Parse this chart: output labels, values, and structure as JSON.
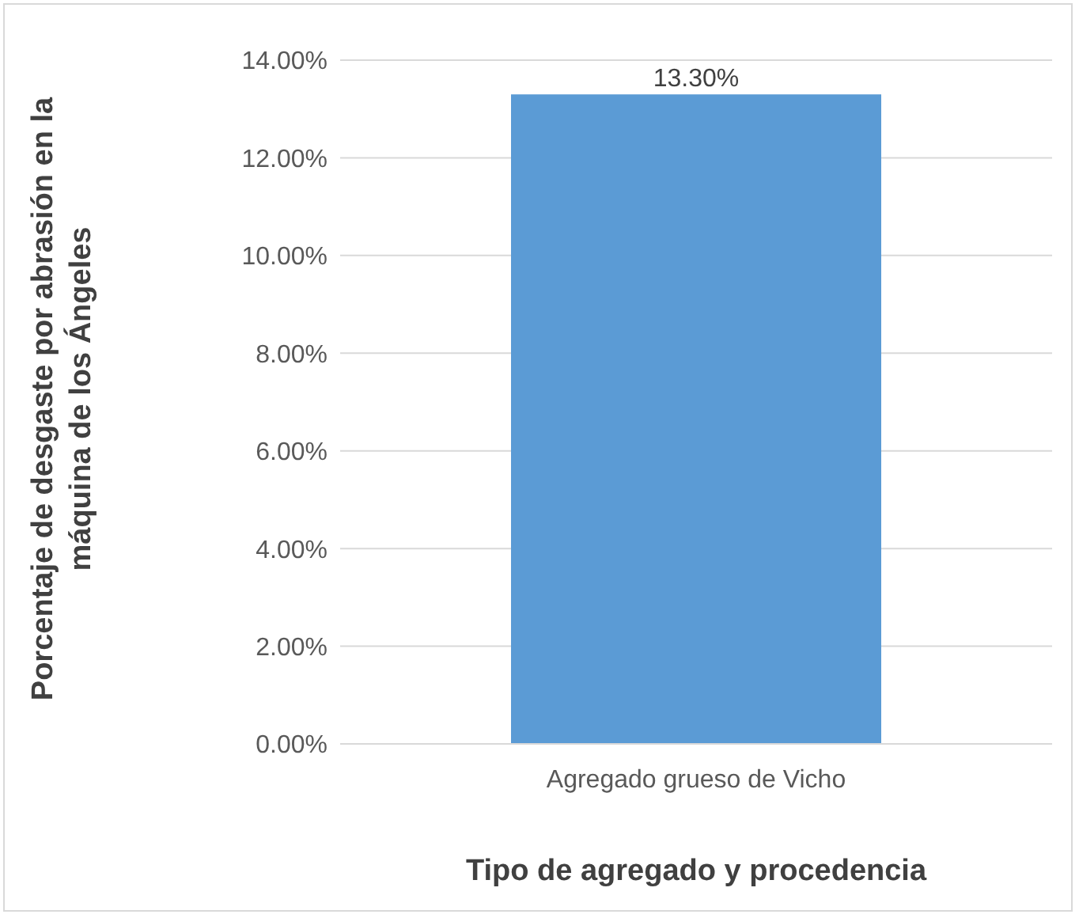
{
  "chart_data": {
    "type": "bar",
    "xlabel": "Tipo de agregado y procedencia",
    "ylabel": "Porcentaje de desgaste por abrasión en la máquina de los Ángeles",
    "categories": [
      "Agregado grueso de Vicho"
    ],
    "values": [
      13.3
    ],
    "value_labels": [
      "13.30%"
    ],
    "color": "#5b9bd5",
    "ylim": [
      0,
      14
    ],
    "yticks": [
      {
        "value": 0,
        "label": "0.00%"
      },
      {
        "value": 2,
        "label": "2.00%"
      },
      {
        "value": 4,
        "label": "4.00%"
      },
      {
        "value": 6,
        "label": "6.00%"
      },
      {
        "value": 8,
        "label": "8.00%"
      },
      {
        "value": 10,
        "label": "10.00%"
      },
      {
        "value": 12,
        "label": "12.00%"
      },
      {
        "value": 14,
        "label": "14.00%"
      }
    ],
    "grid": "y",
    "legend": false
  }
}
